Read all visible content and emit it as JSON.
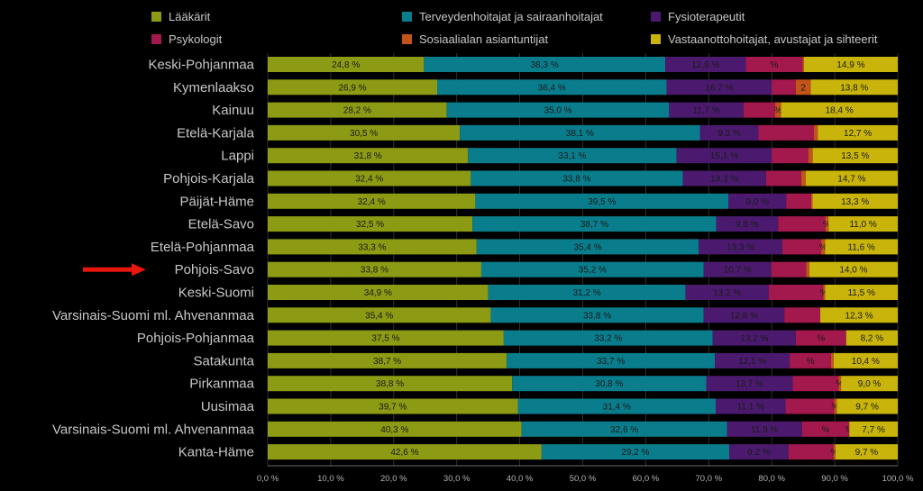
{
  "chart_data": {
    "type": "bar",
    "orientation": "horizontal-stacked-100",
    "legend": [
      {
        "name": "Lääkärit",
        "color": "#8c9a14"
      },
      {
        "name": "Terveydenhoitajat ja sairaanhoitajat",
        "color": "#0a7d8c"
      },
      {
        "name": "Fysioterapeutit",
        "color": "#4b1a6e"
      },
      {
        "name": "Psykologit",
        "color": "#a3194d"
      },
      {
        "name": "Sosiaalialan asiantuntijat",
        "color": "#c2541a"
      },
      {
        "name": "Vastaanottohoitajat, avustajat ja sihteerit",
        "color": "#c8b40a"
      }
    ],
    "categories": [
      "Keski-Pohjanmaa",
      "Kymenlaakso",
      "Kainuu",
      "Etelä-Karjala",
      "Lappi",
      "Pohjois-Karjala",
      "Päijät-Häme",
      "Etelä-Savo",
      "Etelä-Pohjanmaa",
      "Pohjois-Savo",
      "Keski-Suomi",
      "Varsinais-Suomi ml. Ahvenanmaa",
      "Pohjois-Pohjanmaa",
      "Satakunta",
      "Pirkanmaa",
      "Uusimaa",
      "Varsinais-Suomi ml. Ahvenanmaa",
      "Kanta-Häme"
    ],
    "highlighted_category": "Pohjois-Savo",
    "series": [
      {
        "name": "Lääkärit",
        "values": [
          24.8,
          26.9,
          28.2,
          30.5,
          31.8,
          32.4,
          32.4,
          32.5,
          33.3,
          33.8,
          34.9,
          35.4,
          37.5,
          38.7,
          38.8,
          39.7,
          40.3,
          42.6
        ],
        "labels": [
          "24,8 %",
          "26,9 %",
          "28,2 %",
          "30,5 %",
          "31,8 %",
          "32,4 %",
          "32,4 %",
          "32,5 %",
          "33,3 %",
          "33,8 %",
          "34,9 %",
          "35,4 %",
          "37,5 %",
          "38,7 %",
          "38,8 %",
          "39,7 %",
          "40,3 %",
          "42,6 %"
        ]
      },
      {
        "name": "Terveydenhoitajat ja sairaanhoitajat",
        "values": [
          38.3,
          36.4,
          35.0,
          38.1,
          33.1,
          33.8,
          39.5,
          38.7,
          35.4,
          35.2,
          31.2,
          33.8,
          33.2,
          33.7,
          30.8,
          31.4,
          32.6,
          29.2
        ],
        "labels": [
          "38,3 %",
          "36,4 %",
          "35,0 %",
          "38,1 %",
          "33,1 %",
          "33,8 %",
          "39,5 %",
          "38,7 %",
          "35,4 %",
          "35,2 %",
          "31,2 %",
          "33,8 %",
          "33,2 %",
          "33,7 %",
          "30,8 %",
          "31,4 %",
          "32,6 %",
          "29,2 %"
        ]
      },
      {
        "name": "Fysioterapeutit",
        "values": [
          12.8,
          16.7,
          11.7,
          9.3,
          15.1,
          13.3,
          9.0,
          9.8,
          13.3,
          10.7,
          13.2,
          12.8,
          13.2,
          12.1,
          13.7,
          11.1,
          11.9,
          9.2
        ],
        "labels": [
          "12,8 %",
          "16,7 %",
          "11,7 %",
          "9,3 %",
          "15,1 %",
          "13,3 %",
          "9,0 %",
          "9,8 %",
          "13,3 %",
          "10,7 %",
          "13,2 %",
          "12,8 %",
          "13,2 %",
          "12,1 %",
          "13,7 %",
          "11,1 %",
          "11,9 %",
          "9,2 %"
        ]
      },
      {
        "name": "Psykologit",
        "values": [
          9.0,
          3.8,
          5.0,
          8.8,
          5.8,
          5.6,
          3.9,
          7.5,
          6.2,
          5.5,
          8.6,
          5.7,
          8.0,
          6.7,
          7.3,
          7.7,
          7.5,
          7.0
        ],
        "labels": [
          "%",
          "",
          "",
          "",
          "",
          "",
          "",
          "",
          "",
          "",
          "",
          "",
          "%",
          "%",
          "",
          "",
          "%",
          ""
        ]
      },
      {
        "name": "Sosiaalialan asiantuntijat",
        "values": [
          0.2,
          2.4,
          0.9,
          0.6,
          0.7,
          0.7,
          0.2,
          0.5,
          0.6,
          0.5,
          0.3,
          0.0,
          0.0,
          0.4,
          0.4,
          0.4,
          0.0,
          0.3
        ],
        "labels": [
          "",
          "2",
          "%",
          "",
          "",
          "",
          "",
          "%",
          "%",
          "",
          "%",
          "",
          "",
          "",
          "%",
          "%",
          "%",
          "%"
        ]
      },
      {
        "name": "Vastaanottohoitajat, avustajat ja sihteerit",
        "values": [
          14.9,
          13.8,
          18.4,
          12.7,
          13.5,
          14.7,
          13.3,
          11.0,
          11.6,
          14.0,
          11.5,
          12.3,
          8.2,
          10.4,
          9.0,
          9.7,
          7.7,
          9.7
        ],
        "labels": [
          "14,9 %",
          "13,8 %",
          "18,4 %",
          "12,7 %",
          "13,5 %",
          "14,7 %",
          "13,3 %",
          "11,0 %",
          "11,6 %",
          "14,0 %",
          "11,5 %",
          "12,3 %",
          "8,2 %",
          "10,4 %",
          "9,0 %",
          "9,7 %",
          "7,7 %",
          "9,7 %"
        ]
      }
    ],
    "x_ticks": [
      "0,0 %",
      "10,0 %",
      "20,0 %",
      "30,0 %",
      "40,0 %",
      "50,0 %",
      "60,0 %",
      "70,0 %",
      "80,0 %",
      "90,0 %",
      "100,0 %"
    ],
    "xlim": [
      0,
      100
    ],
    "legend_position": "top"
  }
}
